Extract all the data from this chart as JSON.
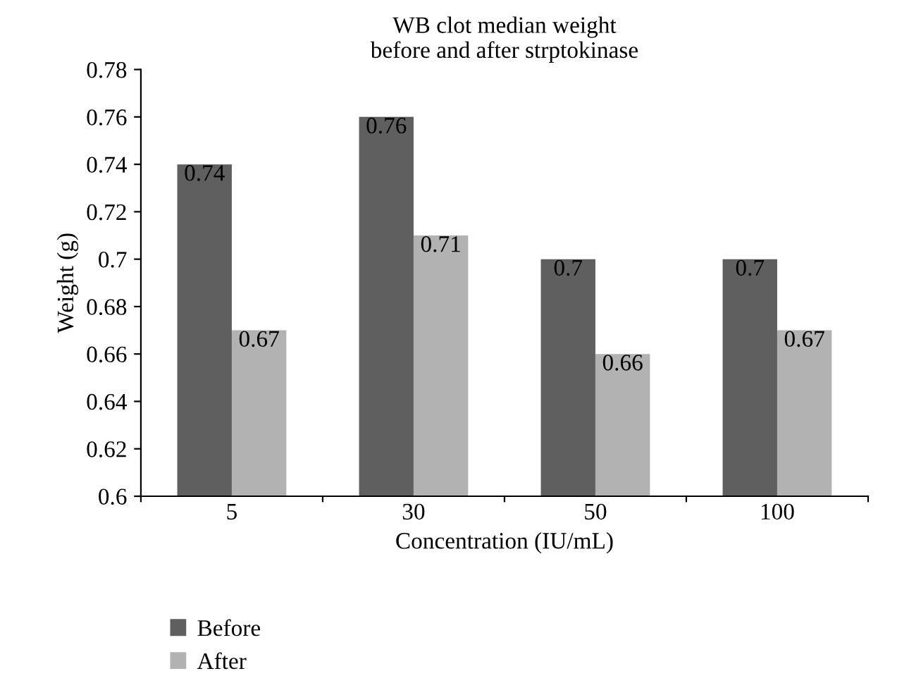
{
  "chart_data": {
    "type": "bar",
    "title": "WB clot median weight\nbefore and after strptokinase",
    "xlabel": "Concentration (IU/mL)",
    "ylabel": "Weight (g)",
    "categories": [
      "5",
      "30",
      "50",
      "100"
    ],
    "series": [
      {
        "name": "Before",
        "color": "#5f5f5f",
        "values": [
          0.74,
          0.76,
          0.7,
          0.7
        ]
      },
      {
        "name": "After",
        "color": "#b2b2b2",
        "values": [
          0.67,
          0.71,
          0.66,
          0.67
        ]
      }
    ],
    "ylim": [
      0.6,
      0.78
    ],
    "yticks": [
      0.6,
      0.62,
      0.64,
      0.66,
      0.68,
      0.7,
      0.72,
      0.74,
      0.76,
      0.78
    ],
    "data_labels": true,
    "grid": false,
    "legend": "bottom left"
  }
}
